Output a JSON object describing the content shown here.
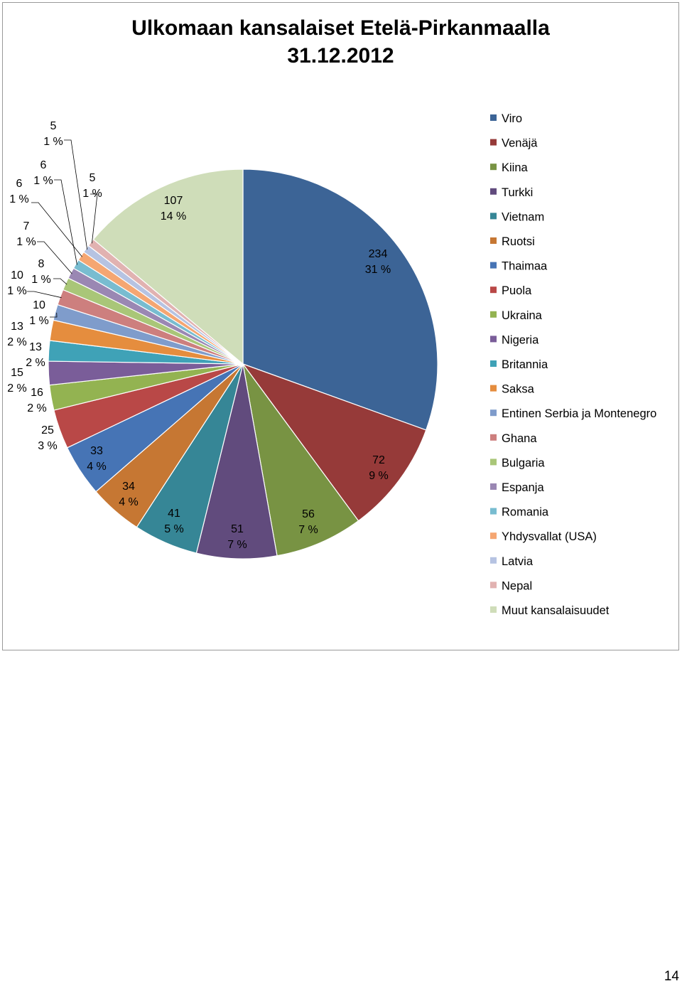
{
  "page": {
    "page_number": "14"
  },
  "chart_data": {
    "type": "pie",
    "title": "Ulkomaan kansalaiset Etelä-Pirkanmaalla",
    "subtitle": "31.12.2012",
    "legend_position": "right",
    "slices": [
      {
        "name": "Viro",
        "value": 234,
        "percent": "31 %",
        "color": "#3c6496"
      },
      {
        "name": "Venäjä",
        "value": 72,
        "percent": "9 %",
        "color": "#963a39"
      },
      {
        "name": "Kiina",
        "value": 56,
        "percent": "7 %",
        "color": "#789343"
      },
      {
        "name": "Turkki",
        "value": 51,
        "percent": "7 %",
        "color": "#614b7d"
      },
      {
        "name": "Vietnam",
        "value": 41,
        "percent": "5 %",
        "color": "#368696"
      },
      {
        "name": "Ruotsi",
        "value": 34,
        "percent": "4 %",
        "color": "#c67733"
      },
      {
        "name": "Thaimaa",
        "value": 33,
        "percent": "4 %",
        "color": "#4674b5"
      },
      {
        "name": "Puola",
        "value": 25,
        "percent": "3 %",
        "color": "#b94847"
      },
      {
        "name": "Ukraina",
        "value": 16,
        "percent": "2 %",
        "color": "#93b351"
      },
      {
        "name": "Nigeria",
        "value": 15,
        "percent": "2 %",
        "color": "#7a5d99"
      },
      {
        "name": "Britannia",
        "value": 13,
        "percent": "2 %",
        "color": "#3fa2b7"
      },
      {
        "name": "Saksa",
        "value": 13,
        "percent": "2 %",
        "color": "#e58d3e"
      },
      {
        "name": "Entinen Serbia ja Montenegro",
        "value": 10,
        "percent": "1 %",
        "color": "#7f9ccb"
      },
      {
        "name": "Ghana",
        "value": 10,
        "percent": "1 %",
        "color": "#cd7f7e"
      },
      {
        "name": "Bulgaria",
        "value": 8,
        "percent": "1 %",
        "color": "#a9c678"
      },
      {
        "name": "Espanja",
        "value": 7,
        "percent": "1 %",
        "color": "#9a87b3"
      },
      {
        "name": "Romania",
        "value": 6,
        "percent": "1 %",
        "color": "#78bcd0"
      },
      {
        "name": "Yhdysvallat (USA)",
        "value": 6,
        "percent": "1 %",
        "color": "#f5a672"
      },
      {
        "name": "Latvia",
        "value": 5,
        "percent": "1 %",
        "color": "#b6c3e2"
      },
      {
        "name": "Nepal",
        "value": 5,
        "percent": "1 %",
        "color": "#e1b2b1"
      },
      {
        "name": "Muut kansalaisuudet",
        "value": 107,
        "percent": "14 %",
        "color": "#cfddb9"
      }
    ]
  }
}
